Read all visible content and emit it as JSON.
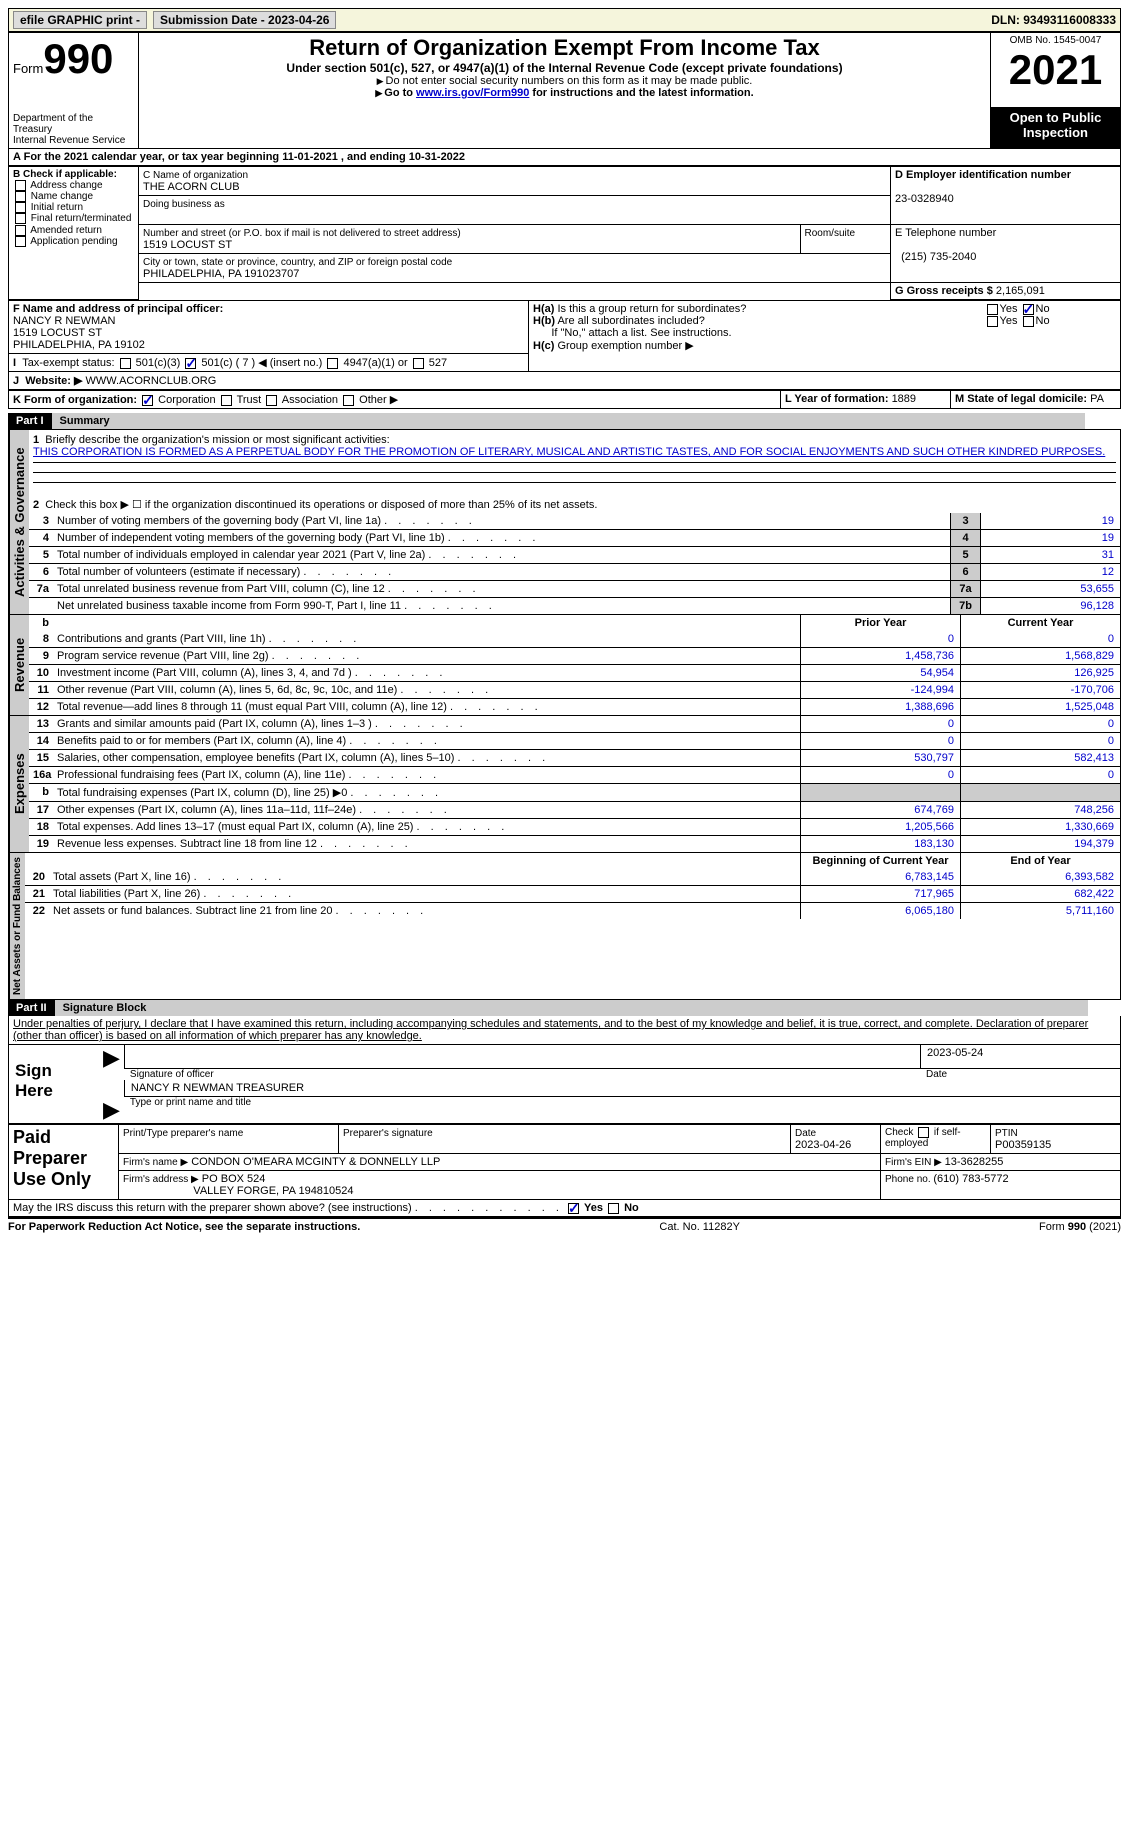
{
  "topbar": {
    "efile": "efile GRAPHIC print - ",
    "submission": "Submission Date - 2023-04-26",
    "dln": "DLN: 93493116008333"
  },
  "header": {
    "form_word": "Form",
    "form_num": "990",
    "title": "Return of Organization Exempt From Income Tax",
    "subtitle": "Under section 501(c), 527, or 4947(a)(1) of the Internal Revenue Code (except private foundations)",
    "note1": "Do not enter social security numbers on this form as it may be made public.",
    "note2_a": "Go to ",
    "note2_link": "www.irs.gov/Form990",
    "note2_b": " for instructions and the latest information.",
    "dept": "Department of the Treasury",
    "irs": "Internal Revenue Service",
    "omb": "OMB No. 1545-0047",
    "year": "2021",
    "inspect": "Open to Public Inspection"
  },
  "rowA": {
    "text_a": "For the 2021 calendar year, or tax year beginning ",
    "begin": "11-01-2021",
    "text_b": " , and ending ",
    "end": "10-31-2022"
  },
  "boxB": {
    "label": "B Check if applicable:",
    "opts": [
      "Address change",
      "Name change",
      "Initial return",
      "Final return/terminated",
      "Amended return",
      "Application pending"
    ]
  },
  "boxC": {
    "label_name": "C Name of organization",
    "name": "THE ACORN CLUB",
    "dba_label": "Doing business as",
    "addr_label": "Number and street (or P.O. box if mail is not delivered to street address)",
    "room_label": "Room/suite",
    "addr": "1519 LOCUST ST",
    "city_label": "City or town, state or province, country, and ZIP or foreign postal code",
    "city": "PHILADELPHIA, PA  191023707"
  },
  "boxD": {
    "label": "D Employer identification number",
    "val": "23-0328940"
  },
  "boxE": {
    "label": "E Telephone number",
    "val": "(215) 735-2040"
  },
  "boxG": {
    "label": "G Gross receipts $ ",
    "val": "2,165,091"
  },
  "boxF": {
    "label": "F Name and address of principal officer:",
    "name": "NANCY R NEWMAN",
    "addr1": "1519 LOCUST ST",
    "addr2": "PHILADELPHIA, PA  19102"
  },
  "boxH": {
    "ha": "Is this a group return for subordinates?",
    "hb": "Are all subordinates included?",
    "hb2": "If \"No,\" attach a list. See instructions.",
    "hc": "Group exemption number ▶",
    "yes": "Yes",
    "no": "No"
  },
  "rowI": {
    "label": "Tax-exempt status:",
    "o1": "501(c)(3)",
    "o2": "501(c) ( 7 ) ◀ (insert no.)",
    "o3": "4947(a)(1) or",
    "o4": "527"
  },
  "rowJ": {
    "label": "Website: ▶",
    "val": "WWW.ACORNCLUB.ORG"
  },
  "rowK": {
    "label": "K Form of organization:",
    "o1": "Corporation",
    "o2": "Trust",
    "o3": "Association",
    "o4": "Other ▶"
  },
  "rowL": {
    "label": "L Year of formation: ",
    "val": "1889"
  },
  "rowM": {
    "label": "M State of legal domicile: ",
    "val": "PA"
  },
  "part1": {
    "hdr": "Part I",
    "title": "Summary"
  },
  "mission": {
    "label": "Briefly describe the organization's mission or most significant activities:",
    "text": "THIS CORPORATION IS FORMED AS A PERPETUAL BODY FOR THE PROMOTION OF LITERARY, MUSICAL AND ARTISTIC TASTES, AND FOR SOCIAL ENJOYMENTS AND SUCH OTHER KINDRED PURPOSES."
  },
  "line2": "Check this box ▶ ☐ if the organization discontinued its operations or disposed of more than 25% of its net assets.",
  "lines_ag": [
    {
      "n": "3",
      "t": "Number of voting members of the governing body (Part VI, line 1a)",
      "b": "3",
      "v": "19"
    },
    {
      "n": "4",
      "t": "Number of independent voting members of the governing body (Part VI, line 1b)",
      "b": "4",
      "v": "19"
    },
    {
      "n": "5",
      "t": "Total number of individuals employed in calendar year 2021 (Part V, line 2a)",
      "b": "5",
      "v": "31"
    },
    {
      "n": "6",
      "t": "Total number of volunteers (estimate if necessary)",
      "b": "6",
      "v": "12"
    },
    {
      "n": "7a",
      "t": "Total unrelated business revenue from Part VIII, column (C), line 12",
      "b": "7a",
      "v": "53,655"
    },
    {
      "n": "",
      "t": "Net unrelated business taxable income from Form 990-T, Part I, line 11",
      "b": "7b",
      "v": "96,128"
    }
  ],
  "col_prior": "Prior Year",
  "col_current": "Current Year",
  "revenue": [
    {
      "n": "8",
      "t": "Contributions and grants (Part VIII, line 1h)",
      "p": "0",
      "c": "0"
    },
    {
      "n": "9",
      "t": "Program service revenue (Part VIII, line 2g)",
      "p": "1,458,736",
      "c": "1,568,829"
    },
    {
      "n": "10",
      "t": "Investment income (Part VIII, column (A), lines 3, 4, and 7d )",
      "p": "54,954",
      "c": "126,925"
    },
    {
      "n": "11",
      "t": "Other revenue (Part VIII, column (A), lines 5, 6d, 8c, 9c, 10c, and 11e)",
      "p": "-124,994",
      "c": "-170,706"
    },
    {
      "n": "12",
      "t": "Total revenue—add lines 8 through 11 (must equal Part VIII, column (A), line 12)",
      "p": "1,388,696",
      "c": "1,525,048"
    }
  ],
  "expenses": [
    {
      "n": "13",
      "t": "Grants and similar amounts paid (Part IX, column (A), lines 1–3 )",
      "p": "0",
      "c": "0"
    },
    {
      "n": "14",
      "t": "Benefits paid to or for members (Part IX, column (A), line 4)",
      "p": "0",
      "c": "0"
    },
    {
      "n": "15",
      "t": "Salaries, other compensation, employee benefits (Part IX, column (A), lines 5–10)",
      "p": "530,797",
      "c": "582,413"
    },
    {
      "n": "16a",
      "t": "Professional fundraising fees (Part IX, column (A), line 11e)",
      "p": "0",
      "c": "0"
    },
    {
      "n": "b",
      "t": "Total fundraising expenses (Part IX, column (D), line 25) ▶0",
      "p": "",
      "c": "",
      "shaded": true
    },
    {
      "n": "17",
      "t": "Other expenses (Part IX, column (A), lines 11a–11d, 11f–24e)",
      "p": "674,769",
      "c": "748,256"
    },
    {
      "n": "18",
      "t": "Total expenses. Add lines 13–17 (must equal Part IX, column (A), line 25)",
      "p": "1,205,566",
      "c": "1,330,669"
    },
    {
      "n": "19",
      "t": "Revenue less expenses. Subtract line 18 from line 12",
      "p": "183,130",
      "c": "194,379"
    }
  ],
  "col_begin": "Beginning of Current Year",
  "col_end": "End of Year",
  "netassets": [
    {
      "n": "20",
      "t": "Total assets (Part X, line 16)",
      "p": "6,783,145",
      "c": "6,393,582"
    },
    {
      "n": "21",
      "t": "Total liabilities (Part X, line 26)",
      "p": "717,965",
      "c": "682,422"
    },
    {
      "n": "22",
      "t": "Net assets or fund balances. Subtract line 21 from line 20",
      "p": "6,065,180",
      "c": "5,711,160"
    }
  ],
  "part2": {
    "hdr": "Part II",
    "title": "Signature Block"
  },
  "penalty": "Under penalties of perjury, I declare that I have examined this return, including accompanying schedules and statements, and to the best of my knowledge and belief, it is true, correct, and complete. Declaration of preparer (other than officer) is based on all information of which preparer has any knowledge.",
  "sign": {
    "here": "Sign Here",
    "sig_label": "Signature of officer",
    "date_label": "Date",
    "date": "2023-05-24",
    "name": "NANCY R NEWMAN  TREASURER",
    "name_label": "Type or print name and title"
  },
  "paid": {
    "label": "Paid Preparer Use Only",
    "c1": "Print/Type preparer's name",
    "c2": "Preparer's signature",
    "c3": "Date",
    "date": "2023-04-26",
    "c4a": "Check",
    "c4b": "if self-employed",
    "c5": "PTIN",
    "ptin": "P00359135",
    "firm_label": "Firm's name    ▶",
    "firm": "CONDON O'MEARA MCGINTY & DONNELLY LLP",
    "ein_label": "Firm's EIN ▶ ",
    "ein": "13-3628255",
    "addr_label": "Firm's address ▶",
    "addr1": "PO BOX 524",
    "addr2": "VALLEY FORGE, PA  194810524",
    "phone_label": "Phone no. ",
    "phone": "(610) 783-5772"
  },
  "discuss": "May the IRS discuss this return with the preparer shown above? (see instructions)",
  "footer": {
    "left": "For Paperwork Reduction Act Notice, see the separate instructions.",
    "mid": "Cat. No. 11282Y",
    "right": "Form 990 (2021)"
  },
  "vlabels": {
    "ag": "Activities & Governance",
    "rev": "Revenue",
    "exp": "Expenses",
    "na": "Net Assets or Fund Balances"
  }
}
